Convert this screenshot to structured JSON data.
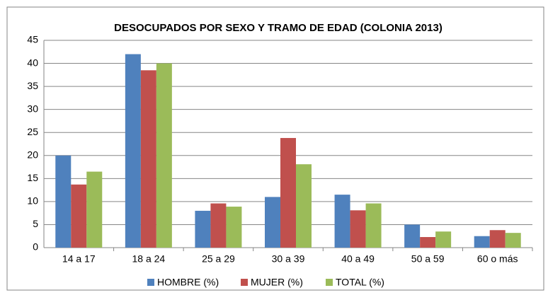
{
  "chart_data": {
    "type": "bar",
    "title": "DESOCUPADOS POR SEXO Y TRAMO DE EDAD (COLONIA 2013)",
    "categories": [
      "14 a 17",
      "18 a 24",
      "25 a 29",
      "30 a 39",
      "40 a 49",
      "50 a 59",
      "60 o más"
    ],
    "series": [
      {
        "name": "HOMBRE (%)",
        "color": "#4f81bd",
        "values": [
          20,
          42,
          8,
          11,
          11.5,
          5,
          2.5
        ]
      },
      {
        "name": "MUJER (%)",
        "color": "#c0504d",
        "values": [
          13.7,
          38.5,
          9.6,
          23.8,
          8.1,
          2.3,
          3.8
        ]
      },
      {
        "name": "TOTAL (%)",
        "color": "#9bbb59",
        "values": [
          16.5,
          40,
          8.9,
          18.1,
          9.6,
          3.5,
          3.2
        ]
      }
    ],
    "ylim": [
      0,
      45
    ],
    "yticks": [
      0,
      5,
      10,
      15,
      20,
      25,
      30,
      35,
      40,
      45
    ],
    "grid": true,
    "legend": "bottom"
  }
}
